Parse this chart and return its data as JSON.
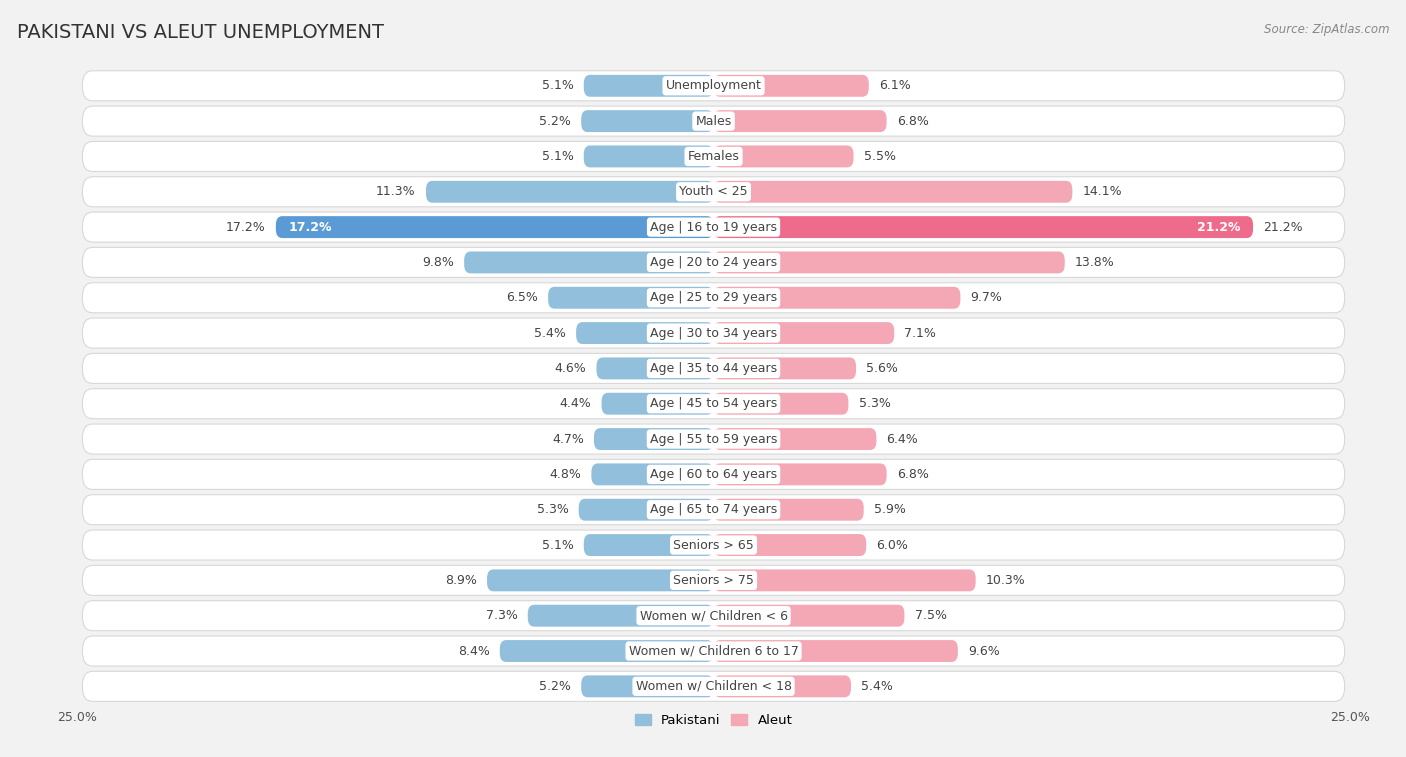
{
  "title": "PAKISTANI VS ALEUT UNEMPLOYMENT",
  "source": "Source: ZipAtlas.com",
  "categories": [
    "Unemployment",
    "Males",
    "Females",
    "Youth < 25",
    "Age | 16 to 19 years",
    "Age | 20 to 24 years",
    "Age | 25 to 29 years",
    "Age | 30 to 34 years",
    "Age | 35 to 44 years",
    "Age | 45 to 54 years",
    "Age | 55 to 59 years",
    "Age | 60 to 64 years",
    "Age | 65 to 74 years",
    "Seniors > 65",
    "Seniors > 75",
    "Women w/ Children < 6",
    "Women w/ Children 6 to 17",
    "Women w/ Children < 18"
  ],
  "pakistani": [
    5.1,
    5.2,
    5.1,
    11.3,
    17.2,
    9.8,
    6.5,
    5.4,
    4.6,
    4.4,
    4.7,
    4.8,
    5.3,
    5.1,
    8.9,
    7.3,
    8.4,
    5.2
  ],
  "aleut": [
    6.1,
    6.8,
    5.5,
    14.1,
    21.2,
    13.8,
    9.7,
    7.1,
    5.6,
    5.3,
    6.4,
    6.8,
    5.9,
    6.0,
    10.3,
    7.5,
    9.6,
    5.4
  ],
  "pakistani_color": "#92BFDC",
  "aleut_color": "#F4A7B4",
  "pakistani_highlight": "#5B9BD5",
  "aleut_highlight": "#EE6B8B",
  "axis_max": 25.0,
  "background_color": "#f2f2f2",
  "row_bg_color": "#ffffff",
  "row_border_color": "#d8d8d8",
  "bar_height": 0.62,
  "label_fontsize": 9.5,
  "title_fontsize": 14,
  "category_fontsize": 9,
  "value_fontsize": 9
}
